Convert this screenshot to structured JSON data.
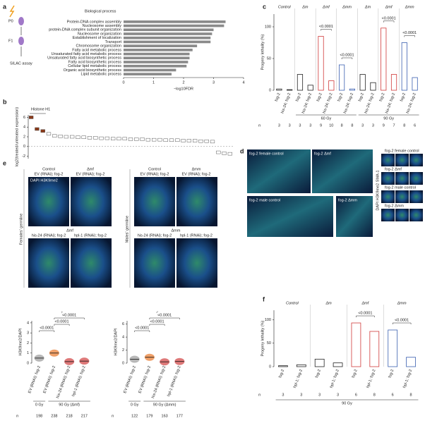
{
  "figure": {
    "panel_labels": [
      "a",
      "b",
      "c",
      "d",
      "e",
      "f"
    ],
    "a_diagram": {
      "p0": "P0",
      "f1": "F1",
      "assay": "SILAC assay"
    },
    "d_images": {
      "female_control": "fog-2 female control",
      "female_mf": "fog-2 Δmf",
      "male_control": "fog-2 male control",
      "male_mm": "fog-2 Δmm",
      "tiles": [
        "fog-2 female control",
        "fog-2 Δmf",
        "fog-2 male control",
        "fog-2 Δmm"
      ],
      "stain": "DAPI H3K9me2 SMA-1"
    },
    "e_images": [
      {
        "germline": "Females' germline",
        "conditions": [
          "Control",
          "Δmf",
          "Δmf"
        ],
        "rnai": [
          "EV (RNAi); fog-2",
          "EV (RNAi); fog-2",
          "his-24 (RNAi); fog-2",
          "hpl-1 (RNAi); fog-2"
        ]
      },
      {
        "germline": "Males' germline",
        "conditions": [
          "Control",
          "Δmm",
          "Δmm"
        ],
        "rnai": [
          "EV (RNAi); fog-2",
          "EV (RNAi); fog-2",
          "his-24 (RNAi); fog-2",
          "hpl-1 (RNAi); fog-2"
        ]
      }
    ],
    "e_stain": "DAPI H3K9me2"
  },
  "chart_data": [
    {
      "type": "hbar",
      "title": "Biological process",
      "x_label": "−log10FDR",
      "color": "#8a8a8a",
      "categories": [
        "Protein-DNA complex assembly",
        "Nucleosome assembly",
        "protein-DNA complex subunit organization",
        "Nucleosome organization",
        "Establishment of localization",
        "Transport",
        "Chromosome organization",
        "Fatty acid metabolic process",
        "Unsaturated fatty acid metabolic process",
        "Unsaturated fatty acid biosynthetic process",
        "Fatty acid biosynthetic process",
        "Cellular lipid metabolic process",
        "Organic acid biosynthetic process",
        "Lipid metabolic process"
      ],
      "values": [
        3.4,
        3.35,
        3.0,
        2.95,
        2.9,
        2.9,
        2.45,
        2.3,
        2.2,
        2.2,
        2.15,
        2.1,
        1.75,
        1.6
      ],
      "xlim": [
        0,
        4
      ],
      "xticks": [
        0,
        1,
        2,
        3,
        4
      ]
    },
    {
      "type": "box",
      "title": "Histone H1",
      "y_label": "log2(treated/untreated expression)",
      "categories": [
        null,
        null,
        null,
        null,
        null,
        null,
        null,
        null,
        null,
        null,
        null,
        null,
        null,
        null,
        null,
        null,
        null,
        null,
        null,
        null,
        null,
        null,
        null,
        null,
        null,
        null,
        null,
        null,
        null,
        null,
        null,
        null,
        null,
        null,
        null
      ],
      "values": [
        6.0,
        3.6,
        3.2,
        2.6,
        2.2,
        2.1,
        2.0,
        2.0,
        1.9,
        1.9,
        1.8,
        1.8,
        1.7,
        1.7,
        1.6,
        1.6,
        1.6,
        1.5,
        1.5,
        1.5,
        1.4,
        1.4,
        1.4,
        1.3,
        1.3,
        1.3,
        1.2,
        1.2,
        1.2,
        1.1,
        1.1,
        1.0,
        -1.2,
        -1.4,
        -1.5
      ],
      "colors": [
        "#8b3a1a",
        "#8b3a1a",
        "#8b3a1a",
        "#ffffff",
        "#ffffff",
        "#ffffff",
        "#ffffff",
        "#ffffff",
        "#ffffff",
        "#ffffff",
        "#ffffff",
        "#ffffff",
        "#ffffff",
        "#ffffff",
        "#ffffff",
        "#ffffff",
        "#ffffff",
        "#ffffff",
        "#ffffff",
        "#ffffff",
        "#ffffff",
        "#ffffff",
        "#ffffff",
        "#ffffff",
        "#ffffff",
        "#ffffff",
        "#ffffff",
        "#ffffff",
        "#ffffff",
        "#ffffff",
        "#ffffff",
        "#ffffff",
        "#ffffff",
        "#ffffff",
        "#ffffff"
      ],
      "ylim": [
        -2.5,
        6.5
      ],
      "yticks": [
        -2,
        0,
        2,
        4,
        6
      ]
    },
    {
      "type": "bar",
      "y_label": "Progeny lethality (%)",
      "groups": [
        "Control",
        "Δm",
        "Δmf",
        "Δmm",
        "Δm",
        "Δmf",
        "Δmm"
      ],
      "categories": [
        "fog-2",
        "his-24; fog-2",
        "fog-2",
        "his-24; fog-2",
        "fog-2",
        "his-24; fog-2",
        "fog-2",
        "his-24; fog-2",
        "fog-2",
        "his-24; fog-2",
        "fog-2",
        "his-24; fog-2",
        "fog-2",
        "his-24; fog-2"
      ],
      "values": [
        2,
        1,
        25,
        8,
        85,
        15,
        40,
        2,
        25,
        12,
        98,
        25,
        75,
        20
      ],
      "colors": [
        "#222222",
        "#222222",
        "#222222",
        "#222222",
        "#d03a3a",
        "#d03a3a",
        "#3a5fb0",
        "#3a5fb0",
        "#222222",
        "#222222",
        "#d03a3a",
        "#d03a3a",
        "#3a5fb0",
        "#3a5fb0"
      ],
      "ylim": [
        0,
        120
      ],
      "yticks": [
        0,
        50,
        100
      ],
      "doses": [
        "60 Gy",
        "90 Gy"
      ],
      "n_label": "n",
      "n": [
        3,
        3,
        3,
        3,
        9,
        10,
        8,
        8,
        3,
        3,
        9,
        7,
        8,
        6
      ],
      "p_values": [
        "<0.0001",
        "<0.0001",
        "<0.0001",
        "<0.0001"
      ]
    },
    {
      "type": "dot",
      "symbol": "♀",
      "y_label": "H3K9me2/DAPI",
      "categories": [
        "EV (RNAi); fog-2",
        "EV (RNAi); fog-2",
        "his-24 (RNAi); fog-2",
        "hpl-1 (RNAi); fog-2"
      ],
      "values": [
        0.5,
        1.0,
        0.15,
        0.2
      ],
      "colors": [
        "#9a9a9a",
        "#e8782a",
        "#d04040",
        "#d04040"
      ],
      "ylim": [
        0,
        4.2
      ],
      "yticks": [
        0,
        1,
        2,
        3,
        4
      ],
      "doses": [
        "0 Gy",
        "90 Gy (Δmf)"
      ],
      "n_label": "n",
      "n": [
        198,
        238,
        218,
        217
      ],
      "p_values": [
        "<0.0001",
        "<0.0001",
        "<0.0001"
      ]
    },
    {
      "type": "dot",
      "symbol": "♂",
      "y_label": "H3K9me2/DAPI",
      "categories": [
        "EV (RNAi); fog-2",
        "EV (RNAi); fog-2",
        "his-24 (RNAi); fog-2",
        "hpl-1 (RNAi); fog-2"
      ],
      "values": [
        0.6,
        0.9,
        0.2,
        0.25
      ],
      "colors": [
        "#9a9a9a",
        "#e8782a",
        "#d04040",
        "#d04040"
      ],
      "ylim": [
        0,
        6.5
      ],
      "yticks": [
        0,
        2,
        4,
        6
      ],
      "doses": [
        "0 Gy",
        "90 Gy (Δmm)"
      ],
      "n_label": "n",
      "n": [
        122,
        179,
        163,
        177
      ],
      "p_values": [
        "<0.0001",
        "<0.0001",
        "<0.0001"
      ]
    },
    {
      "type": "bar",
      "y_label": "Progeny lethality (%)",
      "groups": [
        "Control",
        "Δm",
        "Δmf",
        "Δmm"
      ],
      "categories": [
        "fog-2",
        "hpl-1; fog-2",
        "fog-2",
        "hpl-1; fog-2",
        "fog-2",
        "hpl-1; fog-2",
        "fog-2",
        "hpl-1; fog-2"
      ],
      "values": [
        2,
        4,
        16,
        8,
        93,
        75,
        78,
        20
      ],
      "colors": [
        "#222222",
        "#222222",
        "#222222",
        "#222222",
        "#d03a3a",
        "#d03a3a",
        "#3a5fb0",
        "#3a5fb0"
      ],
      "ylim": [
        0,
        120
      ],
      "yticks": [
        0,
        50,
        100
      ],
      "doses": [
        "90 Gy"
      ],
      "n_label": "n",
      "n": [
        3,
        3,
        3,
        3,
        6,
        8,
        6,
        8
      ],
      "p_values": [
        "<0.0001",
        "<0.0001"
      ]
    }
  ]
}
